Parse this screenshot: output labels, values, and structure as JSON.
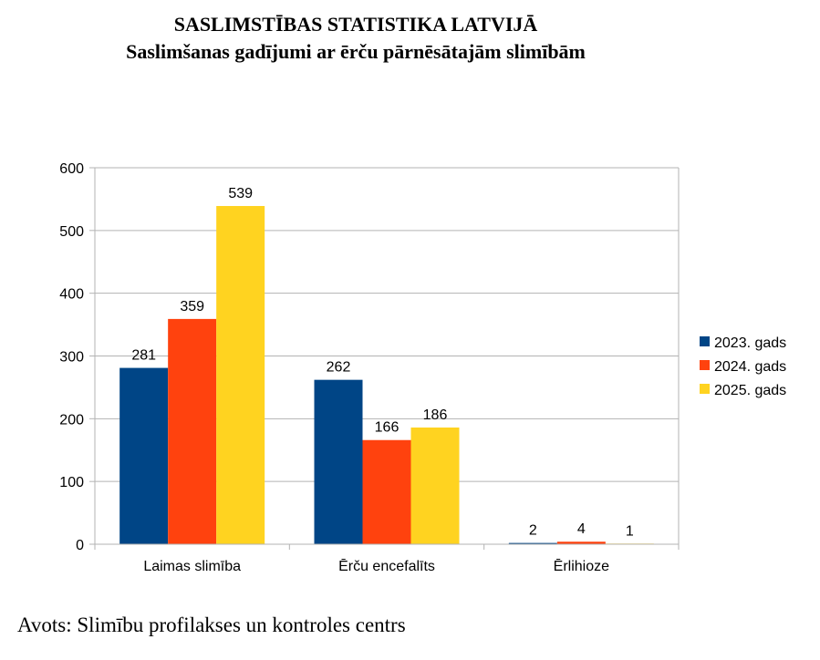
{
  "header": {
    "title": "SASLIMSTĪBAS STATISTIKA LATVIJĀ",
    "subtitle": "Saslimšanas gadījumi ar ērču pārnēsātajām slimībām"
  },
  "footer": {
    "source": "Avots: Slimību profilakses un kontroles centrs"
  },
  "chart_data": {
    "type": "bar",
    "title": "SASLIMSTĪBAS STATISTIKA LATVIJĀ",
    "subtitle": "Saslimšanas gadījumi ar ērču pārnēsātajām slimībām",
    "categories": [
      "Laimas slimība",
      "Ērču encefalīts",
      "Ērlihioze"
    ],
    "series": [
      {
        "name": "2023. gads",
        "color": "#004586",
        "values": [
          281,
          262,
          2
        ]
      },
      {
        "name": "2024. gads",
        "color": "#ff420e",
        "values": [
          359,
          166,
          4
        ]
      },
      {
        "name": "2025. gads",
        "color": "#ffd320",
        "values": [
          539,
          186,
          1
        ]
      }
    ],
    "xlabel": "",
    "ylabel": "",
    "ylim": [
      0,
      600
    ],
    "yticks": [
      0,
      100,
      200,
      300,
      400,
      500,
      600
    ],
    "grid": true,
    "legend": "right",
    "data_labels": true
  }
}
